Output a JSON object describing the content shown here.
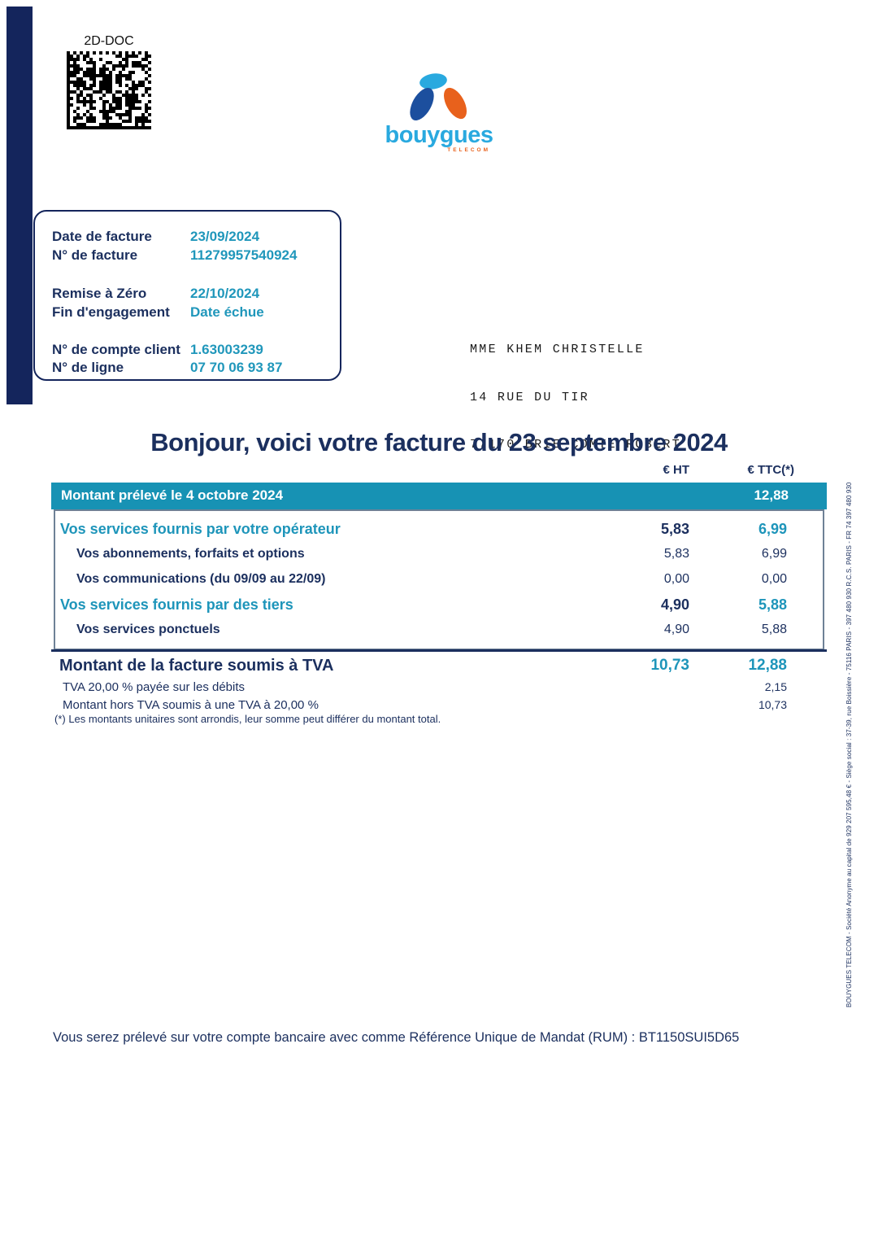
{
  "colors": {
    "navy": "#1b2f5e",
    "teal_text": "#1e95ba",
    "bar_teal": "#1792b4",
    "box_border": "#6e8196",
    "logo_light_blue": "#29a9df",
    "logo_dark_blue": "#1c4f9e",
    "logo_orange": "#e8611c"
  },
  "barcode": {
    "label": "2D-DOC"
  },
  "logo": {
    "brand": "bouygues",
    "sub_brand": "TELECOM"
  },
  "invoice_info": {
    "rows": [
      {
        "label": "Date de facture",
        "value": "23/09/2024"
      },
      {
        "label": "N° de facture",
        "value": "11279957540924"
      },
      {
        "label": "Remise à Zéro",
        "value": "22/10/2024"
      },
      {
        "label": "Fin d'engagement",
        "value": "Date échue"
      },
      {
        "label": "N° de compte client",
        "value": "1.63003239"
      },
      {
        "label": "N° de ligne",
        "value": "07 70 06 93 87"
      }
    ]
  },
  "recipient": {
    "line1": "MME KHEM CHRISTELLE",
    "line2": "14 RUE DU TIR",
    "line3": "77170 BRIE COMTE ROBERT"
  },
  "title": "Bonjour, voici votre facture du 23 septembre 2024",
  "table": {
    "col_ht": "€ HT",
    "col_ttc": "€ TTC(*)",
    "prelevement": {
      "label": "Montant prélevé le 4 octobre 2024",
      "ttc": "12,88"
    },
    "rows": [
      {
        "label": "Vos services fournis par votre opérateur",
        "ht": "5,83",
        "ttc": "6,99"
      },
      {
        "label": "Vos abonnements, forfaits et options",
        "ht": "5,83",
        "ttc": "6,99"
      },
      {
        "label": "Vos communications  (du 09/09 au 22/09)",
        "ht": "0,00",
        "ttc": "0,00"
      },
      {
        "label": "Vos services fournis par des tiers",
        "ht": "4,90",
        "ttc": "5,88"
      },
      {
        "label": "Vos services ponctuels",
        "ht": "4,90",
        "ttc": "5,88"
      }
    ],
    "total_row": {
      "label": "Montant de la facture soumis à TVA",
      "ht": "10,73",
      "ttc": "12,88"
    },
    "tva_rows": [
      {
        "label": "TVA 20,00 % payée sur les débits",
        "ttc": "2,15"
      },
      {
        "label": "Montant hors TVA soumis à une TVA à 20,00 %",
        "ttc": "10,73"
      }
    ],
    "footnote": "(*) Les montants unitaires sont arrondis, leur somme peut différer du montant total."
  },
  "legal_sideline": "BOUYGUES TELECOM - Société Anonyme au capital de 929 207 595,48 € - Siège social : 37-39, rue Boissière - 75116 PARIS - 397 480 930 R.C.S. PARIS - FR 74 397 480 930",
  "mandate_line": "Vous serez prélevé sur votre compte bancaire  avec comme Référence Unique de Mandat (RUM) : BT1150SUI5D65"
}
